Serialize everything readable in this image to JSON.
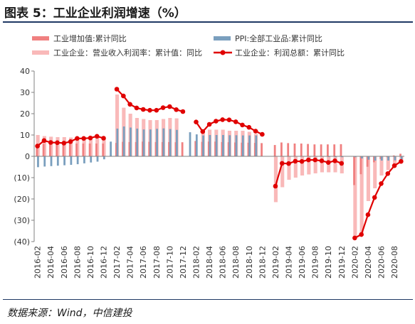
{
  "title": "图表 5：工业企业利润增速（%）",
  "source": "数据来源：Wind，中信建投",
  "colors": {
    "bar_ind": "#f08080",
    "bar_ppi": "#7a9fbe",
    "bar_margin": "#f9b9b9",
    "line_profit": "#e00000",
    "axis": "#808080"
  },
  "chart_data": {
    "type": "bar",
    "ylim": [
      -40,
      40
    ],
    "yticks": [
      40,
      30,
      20,
      10,
      0,
      -10,
      -20,
      -30,
      -40
    ],
    "ytick_labels": [
      "40",
      "30",
      "20",
      "10",
      "0",
      "(10)",
      "(20)",
      "(30)",
      "(40)"
    ],
    "x": [
      "2016-02",
      "2016-03",
      "2016-04",
      "2016-05",
      "2016-06",
      "2016-07",
      "2016-08",
      "2016-09",
      "2016-10",
      "2016-11",
      "2016-12",
      "2017-01",
      "2017-02",
      "2017-03",
      "2017-04",
      "2017-05",
      "2017-06",
      "2017-07",
      "2017-08",
      "2017-09",
      "2017-10",
      "2017-11",
      "2017-12",
      "2018-01",
      "2018-02",
      "2018-03",
      "2018-04",
      "2018-05",
      "2018-06",
      "2018-07",
      "2018-08",
      "2018-09",
      "2018-10",
      "2018-11",
      "2018-12",
      "2019-01",
      "2019-02",
      "2019-03",
      "2019-04",
      "2019-05",
      "2019-06",
      "2019-07",
      "2019-08",
      "2019-09",
      "2019-10",
      "2019-11",
      "2019-12",
      "2020-01",
      "2020-02",
      "2020-03",
      "2020-04",
      "2020-05",
      "2020-06",
      "2020-07",
      "2020-08",
      "2020-09"
    ],
    "x_tick_labels": [
      "2016-02",
      "2016-04",
      "2016-06",
      "2016-08",
      "2016-10",
      "2016-12",
      "2017-02",
      "2017-04",
      "2017-06",
      "2017-08",
      "2017-10",
      "2017-12",
      "2018-02",
      "2018-04",
      "2018-06",
      "2018-08",
      "2018-10",
      "2018-12",
      "2019-02",
      "2019-04",
      "2019-06",
      "2019-08",
      "2019-10",
      "2019-12",
      "2020-02",
      "2020-04",
      "2020-06",
      "2020-08"
    ],
    "series": [
      {
        "name": "工业增加值:累计同比",
        "kind": "bar",
        "values": [
          5.4,
          5.8,
          5.8,
          5.9,
          6.0,
          6.0,
          6.0,
          6.0,
          6.0,
          6.0,
          6.0,
          null,
          6.3,
          6.8,
          6.7,
          6.7,
          6.9,
          6.8,
          6.7,
          6.7,
          6.7,
          6.6,
          6.6,
          null,
          7.2,
          6.8,
          6.9,
          6.9,
          6.7,
          6.6,
          6.5,
          6.4,
          6.4,
          6.3,
          6.2,
          null,
          5.3,
          6.5,
          6.2,
          6.0,
          6.0,
          5.8,
          5.6,
          5.6,
          5.6,
          5.6,
          5.7,
          null,
          -13.5,
          -8.4,
          -4.9,
          -2.8,
          -1.3,
          -0.4,
          0.4,
          1.2
        ]
      },
      {
        "name": "PPI:全部工业品:累计同比",
        "kind": "bar",
        "values": [
          -5.1,
          -4.8,
          -4.6,
          -4.4,
          -4.2,
          -4.0,
          -3.7,
          -3.3,
          -2.9,
          -2.5,
          -1.4,
          6.9,
          13.0,
          14.0,
          13.5,
          13.0,
          12.6,
          12.6,
          12.9,
          13.1,
          12.8,
          12.4,
          null,
          11.3,
          10.3,
          9.8,
          10.0,
          10.0,
          10.0,
          9.9,
          9.9,
          9.8,
          9.8,
          9.8,
          null,
          null,
          -0.1,
          0.0,
          0.0,
          0.0,
          0.0,
          -0.1,
          -0.1,
          -0.2,
          -0.3,
          -0.4,
          -0.4,
          null,
          -0.4,
          -1.0,
          -1.6,
          -2.0,
          -2.0,
          -2.0,
          -1.9,
          -1.5
        ]
      },
      {
        "name": "工业企业：营业收入利润率：累计值：同比",
        "kind": "bar",
        "values": [
          10.0,
          9.5,
          9.2,
          9.0,
          9.0,
          8.8,
          8.8,
          9.0,
          9.2,
          9.0,
          8.5,
          null,
          29.0,
          22.8,
          20.0,
          18.0,
          17.5,
          17.0,
          17.0,
          17.5,
          18.0,
          17.8,
          null,
          null,
          null,
          12.0,
          12.5,
          12.5,
          12.5,
          12.0,
          12.0,
          12.0,
          11.5,
          10.5,
          null,
          null,
          -21.5,
          -14.5,
          -11.0,
          -10.0,
          -9.0,
          -8.5,
          -8.0,
          -7.5,
          -7.5,
          -7.5,
          -8.0,
          null,
          -38.0,
          -36.0,
          -21.0,
          -15.0,
          -9.0,
          -6.5,
          -4.0,
          -2.0
        ]
      },
      {
        "name": "工业企业：利润总额：累计同比",
        "kind": "line",
        "values": [
          4.8,
          7.4,
          6.5,
          6.4,
          6.2,
          6.9,
          8.4,
          8.4,
          8.6,
          9.4,
          8.5,
          null,
          31.5,
          28.3,
          24.4,
          22.7,
          22.0,
          21.6,
          21.6,
          22.8,
          23.3,
          21.9,
          21.0,
          null,
          16.1,
          11.6,
          15.0,
          16.5,
          17.2,
          17.1,
          16.2,
          14.7,
          13.6,
          11.8,
          10.3,
          null,
          -14.0,
          -3.3,
          -3.4,
          -2.3,
          -2.4,
          -1.7,
          -1.7,
          -2.1,
          -2.9,
          -2.1,
          -3.3,
          null,
          -38.3,
          -36.7,
          -27.4,
          -19.3,
          -12.8,
          -8.1,
          -4.4,
          -2.4
        ]
      }
    ],
    "legend_position": "top",
    "grid": false
  }
}
